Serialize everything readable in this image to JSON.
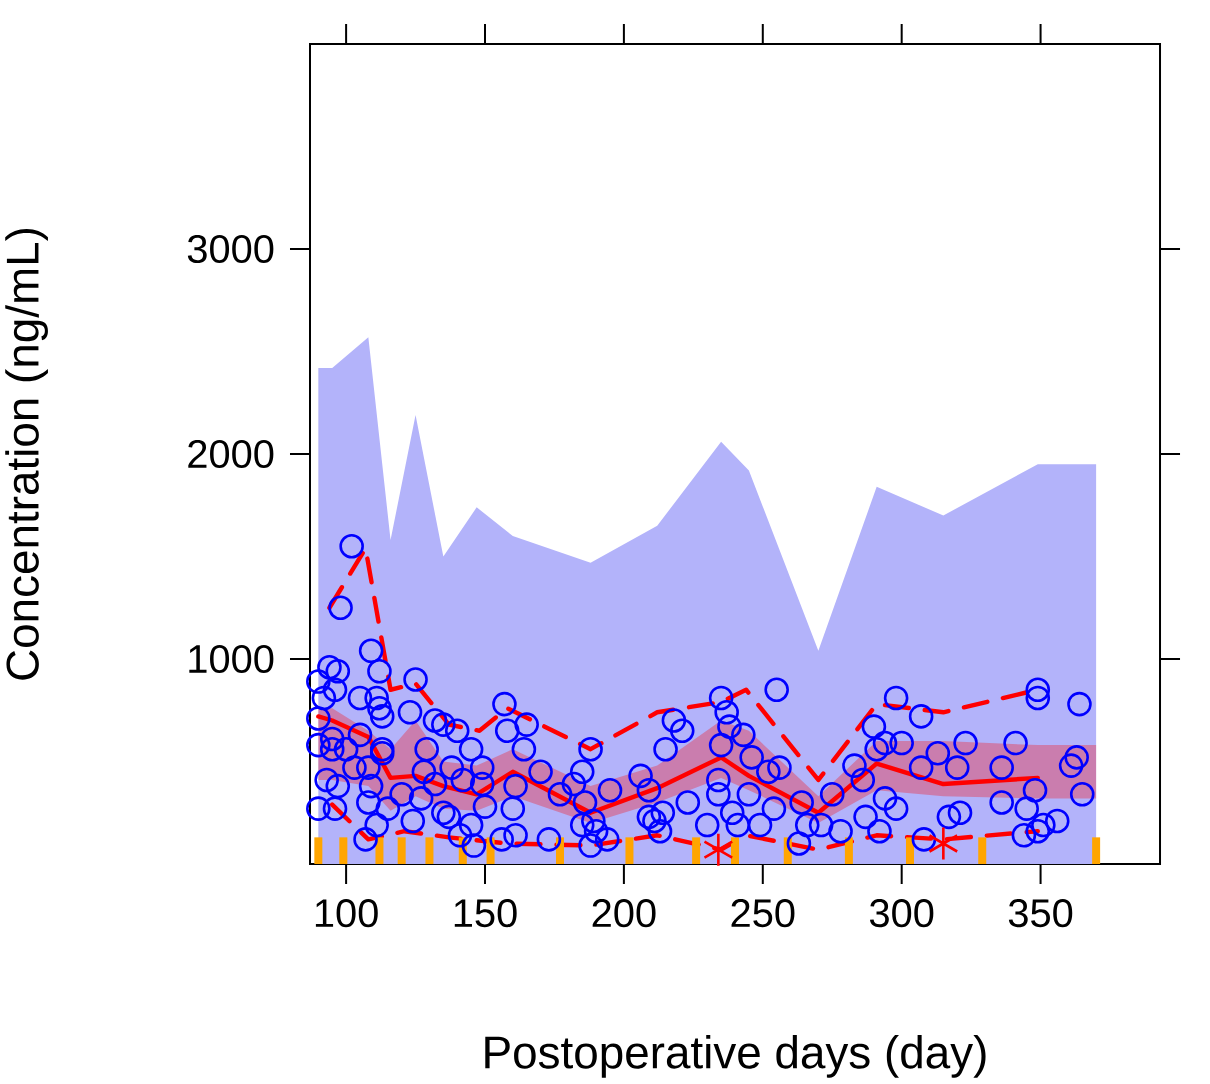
{
  "chart_data": {
    "type": "scatter",
    "xlabel": "Postoperative days (day)",
    "ylabel": "Concentration (ng/mL)",
    "xlim": [
      87,
      393
    ],
    "ylim": [
      0,
      4000
    ],
    "xticks": [
      100,
      150,
      200,
      250,
      300,
      350
    ],
    "yticks": [
      1000,
      2000,
      3000
    ],
    "grid": false,
    "series": [
      {
        "type": "area",
        "color": "#b3b3fa",
        "x": [
          90,
          95,
          108,
          116,
          125,
          135,
          147,
          160,
          188,
          212,
          235,
          245,
          270,
          291,
          315,
          349,
          370
        ],
        "values": [
          2420,
          2420,
          2570,
          1580,
          2190,
          1500,
          1740,
          1600,
          1470,
          1650,
          2060,
          1920,
          1040,
          1840,
          1700,
          1950,
          1950
        ]
      },
      {
        "color": "#0000ff",
        "marker": "circle",
        "x": [
          90,
          94,
          97,
          96,
          92,
          90,
          95,
          90,
          95,
          100,
          93,
          97,
          90,
          98,
          102,
          96,
          105,
          109,
          112,
          111,
          112,
          113,
          103,
          108,
          108,
          107,
          113,
          113,
          105,
          109,
          115,
          111,
          123,
          125,
          132,
          135,
          129,
          128,
          132,
          135,
          137,
          124,
          120,
          127,
          140,
          138,
          142,
          145,
          145,
          146,
          149,
          150,
          141,
          149,
          157,
          158,
          165,
          164,
          161,
          160,
          156,
          161,
          170,
          173,
          177,
          182,
          185,
          188,
          186,
          189,
          185,
          190,
          195,
          194,
          188,
          206,
          209,
          209,
          211,
          214,
          215,
          218,
          221,
          223,
          213,
          230,
          234,
          235,
          237,
          238,
          235,
          234,
          241,
          243,
          245,
          246,
          249,
          252,
          239,
          255,
          256,
          254,
          264,
          266,
          263,
          271,
          275,
          278,
          283,
          286,
          290,
          291,
          294,
          298,
          292,
          287,
          294,
          300,
          298,
          307,
          307,
          308,
          313,
          317,
          320,
          323,
          321,
          336,
          336,
          341,
          345,
          349,
          349,
          348,
          351,
          349,
          356,
          361,
          363,
          364,
          365,
          344
        ],
        "values": [
          890,
          960,
          940,
          850,
          810,
          710,
          610,
          580,
          560,
          560,
          410,
          380,
          270,
          1250,
          1550,
          270,
          810,
          1040,
          940,
          810,
          760,
          720,
          470,
          470,
          300,
          120,
          560,
          540,
          630,
          380,
          270,
          190,
          740,
          900,
          700,
          680,
          560,
          450,
          390,
          250,
          230,
          210,
          340,
          320,
          650,
          470,
          410,
          560,
          190,
          90,
          470,
          280,
          140,
          390,
          780,
          650,
          680,
          560,
          380,
          270,
          120,
          140,
          450,
          120,
          340,
          390,
          450,
          560,
          300,
          210,
          190,
          160,
          360,
          120,
          90,
          430,
          360,
          230,
          210,
          250,
          560,
          700,
          650,
          300,
          160,
          190,
          340,
          810,
          740,
          670,
          580,
          410,
          190,
          630,
          340,
          520,
          190,
          450,
          250,
          850,
          470,
          270,
          300,
          190,
          100,
          190,
          340,
          160,
          480,
          410,
          670,
          560,
          590,
          810,
          160,
          230,
          320,
          590,
          270,
          720,
          470,
          120,
          540,
          230,
          470,
          590,
          250,
          470,
          300,
          590,
          270,
          850,
          810,
          360,
          190,
          160,
          210,
          480,
          520,
          780,
          340,
          140
        ]
      },
      {
        "type": "line",
        "color": "#ff0000",
        "line_style": "solid",
        "x": [
          90,
          95,
          108,
          116,
          125,
          135,
          147,
          160,
          188,
          212,
          235,
          245,
          270,
          291,
          315,
          349,
          370
        ],
        "values": [
          720,
          700,
          620,
          420,
          430,
          380,
          340,
          450,
          250,
          370,
          520,
          430,
          250,
          490,
          390,
          420,
          null
        ],
        "lower": [
          410,
          410,
          380,
          260,
          330,
          270,
          260,
          330,
          200,
          300,
          420,
          360,
          200,
          360,
          330,
          320,
          320
        ],
        "upper": [
          760,
          760,
          650,
          560,
          700,
          500,
          480,
          560,
          380,
          480,
          700,
          650,
          330,
          600,
          600,
          580,
          580
        ]
      },
      {
        "type": "line",
        "color": "#ff0000",
        "line_style": "dashed",
        "x": [
          94,
          107,
          116,
          125,
          137,
          148,
          158,
          188,
          212,
          235,
          244,
          270,
          291,
          315,
          349
        ],
        "values": [
          1250,
          1540,
          850,
          880,
          680,
          650,
          760,
          560,
          740,
          790,
          850,
          410,
          780,
          740,
          850
        ]
      },
      {
        "type": "line",
        "color": "#ff0000",
        "line_style": "dashed",
        "x": [
          95,
          108,
          121,
          137,
          158,
          188,
          212,
          235,
          244,
          270,
          291,
          315,
          349
        ],
        "values": [
          290,
          120,
          160,
          130,
          100,
          90,
          140,
          70,
          140,
          70,
          140,
          120,
          160
        ]
      },
      {
        "type": "scatter",
        "color": "#ff0000",
        "marker": "cross",
        "x": [
          234,
          315
        ],
        "values": [
          70,
          100
        ]
      },
      {
        "type": "bar",
        "color": "#ffa500",
        "x": [
          90,
          99,
          112,
          120,
          130,
          142,
          152,
          177,
          202,
          226,
          240,
          259,
          281,
          303,
          329,
          370
        ],
        "values": [
          130,
          130,
          130,
          130,
          130,
          130,
          130,
          130,
          130,
          130,
          130,
          130,
          130,
          130,
          130,
          130
        ]
      }
    ]
  }
}
